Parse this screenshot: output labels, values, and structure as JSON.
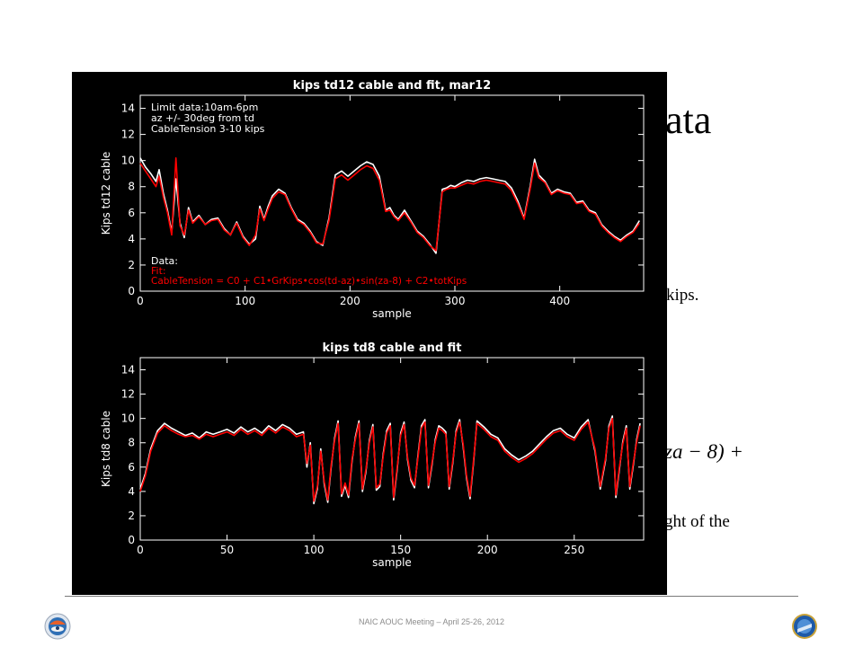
{
  "slide": {
    "title_fragment": "ata",
    "text_fragment_1": "kips.",
    "equation_fragment": "za − 8) +",
    "text_fragment_2": "ght  of the",
    "footer": "NAIC AOUC Meeting – April 25-26, 2012"
  },
  "colors": {
    "background": "#000000",
    "data_line": "#ffffff",
    "fit_line": "#ff0000"
  },
  "chart_data": [
    {
      "type": "line",
      "title": "kips td12 cable and fit, mar12",
      "xlabel": "sample",
      "ylabel": "Kips td12 cable",
      "xlim": [
        0,
        480
      ],
      "ylim": [
        0,
        15
      ],
      "xticks": [
        0,
        100,
        200,
        300,
        400
      ],
      "yticks": [
        0,
        2,
        4,
        6,
        8,
        10,
        12,
        14
      ],
      "annotations": [
        "Limit data:10am-6pm",
        "az +/- 30deg from td",
        "CableTension 3-10 kips"
      ],
      "legend": {
        "position": "bottom-left",
        "data_label": "Data:",
        "fit_label": "Fit:",
        "fit_formula": "CableTension = C0 + C1•GrKips•cos(td-az)•sin(za-8) + C2•totKips"
      },
      "series": [
        {
          "color": "#ffffff",
          "x": [
            0,
            5,
            10,
            15,
            18,
            22,
            26,
            30,
            34,
            38,
            42,
            46,
            50,
            56,
            62,
            68,
            74,
            80,
            86,
            92,
            98,
            104,
            110,
            114,
            118,
            122,
            126,
            132,
            138,
            144,
            150,
            156,
            162,
            168,
            174,
            180,
            186,
            192,
            198,
            204,
            210,
            216,
            222,
            228,
            234,
            238,
            242,
            246,
            252,
            258,
            264,
            270,
            276,
            282,
            288,
            292,
            296,
            300,
            306,
            312,
            318,
            324,
            330,
            336,
            342,
            348,
            354,
            360,
            366,
            372,
            376,
            380,
            386,
            392,
            398,
            404,
            410,
            416,
            422,
            428,
            434,
            440,
            446,
            452,
            458,
            464,
            470,
            476
          ],
          "y": [
            10.2,
            9.5,
            9.0,
            8.4,
            9.3,
            7.5,
            6.2,
            4.5,
            8.6,
            5.2,
            4.1,
            6.4,
            5.3,
            5.8,
            5.1,
            5.5,
            5.6,
            4.8,
            4.3,
            5.3,
            4.2,
            3.6,
            4.0,
            6.5,
            5.5,
            6.5,
            7.3,
            7.8,
            7.5,
            6.4,
            5.5,
            5.2,
            4.6,
            3.8,
            3.5,
            5.6,
            8.9,
            9.2,
            8.8,
            9.2,
            9.6,
            9.9,
            9.7,
            8.8,
            6.2,
            6.4,
            5.8,
            5.5,
            6.2,
            5.4,
            4.6,
            4.2,
            3.6,
            2.9,
            7.8,
            7.9,
            8.1,
            8.0,
            8.3,
            8.5,
            8.4,
            8.6,
            8.7,
            8.6,
            8.5,
            8.4,
            7.9,
            6.9,
            5.6,
            8.1,
            10.1,
            8.9,
            8.4,
            7.5,
            7.8,
            7.6,
            7.5,
            6.8,
            6.9,
            6.2,
            6.0,
            5.1,
            4.6,
            4.2,
            3.9,
            4.3,
            4.6,
            5.4
          ]
        },
        {
          "color": "#ff0000",
          "x": [
            0,
            5,
            10,
            15,
            18,
            22,
            26,
            30,
            34,
            38,
            42,
            46,
            50,
            56,
            62,
            68,
            74,
            80,
            86,
            92,
            98,
            104,
            110,
            114,
            118,
            122,
            126,
            132,
            138,
            144,
            150,
            156,
            162,
            168,
            174,
            180,
            186,
            192,
            198,
            204,
            210,
            216,
            222,
            228,
            234,
            238,
            242,
            246,
            252,
            258,
            264,
            270,
            276,
            282,
            288,
            292,
            296,
            300,
            306,
            312,
            318,
            324,
            330,
            336,
            342,
            348,
            354,
            360,
            366,
            372,
            376,
            380,
            386,
            392,
            398,
            404,
            410,
            416,
            422,
            428,
            434,
            440,
            446,
            452,
            458,
            464,
            470,
            476
          ],
          "y": [
            9.8,
            9.2,
            8.6,
            8.0,
            8.8,
            7.2,
            6.0,
            4.3,
            10.2,
            5.0,
            4.3,
            6.2,
            5.2,
            5.7,
            5.1,
            5.4,
            5.5,
            4.7,
            4.3,
            5.2,
            4.1,
            3.5,
            4.3,
            6.3,
            5.4,
            6.3,
            7.1,
            7.6,
            7.4,
            6.3,
            5.4,
            5.1,
            4.5,
            3.7,
            3.6,
            5.4,
            8.6,
            8.9,
            8.5,
            8.9,
            9.3,
            9.6,
            9.4,
            8.5,
            6.1,
            6.2,
            5.7,
            5.4,
            6.0,
            5.3,
            4.5,
            4.1,
            3.5,
            3.1,
            7.6,
            7.8,
            7.9,
            7.9,
            8.1,
            8.3,
            8.2,
            8.4,
            8.5,
            8.4,
            8.3,
            8.2,
            7.7,
            6.7,
            5.5,
            7.9,
            9.8,
            8.7,
            8.3,
            7.4,
            7.7,
            7.5,
            7.4,
            6.7,
            6.8,
            6.1,
            5.9,
            5.0,
            4.5,
            4.1,
            3.8,
            4.2,
            4.5,
            5.2
          ]
        }
      ]
    },
    {
      "type": "line",
      "title": "kips td8 cable and fit",
      "xlabel": "sample",
      "ylabel": "Kips td8 cable",
      "xlim": [
        0,
        290
      ],
      "ylim": [
        0,
        15
      ],
      "xticks": [
        0,
        50,
        100,
        150,
        200,
        250
      ],
      "yticks": [
        0,
        2,
        4,
        6,
        8,
        10,
        12,
        14
      ],
      "series": [
        {
          "color": "#ffffff",
          "x": [
            0,
            3,
            6,
            10,
            14,
            18,
            22,
            26,
            30,
            34,
            38,
            42,
            46,
            50,
            54,
            58,
            62,
            66,
            70,
            74,
            78,
            82,
            86,
            90,
            94,
            96,
            98,
            100,
            102,
            104,
            106,
            108,
            110,
            112,
            114,
            116,
            118,
            120,
            122,
            124,
            126,
            128,
            130,
            132,
            134,
            136,
            138,
            140,
            142,
            144,
            146,
            148,
            150,
            152,
            154,
            156,
            158,
            160,
            162,
            164,
            166,
            168,
            170,
            172,
            174,
            176,
            178,
            180,
            182,
            184,
            186,
            188,
            190,
            192,
            194,
            198,
            202,
            206,
            210,
            214,
            218,
            222,
            226,
            230,
            234,
            238,
            242,
            246,
            250,
            254,
            258,
            262,
            265,
            268,
            270,
            272,
            274,
            276,
            278,
            280,
            282,
            284,
            286,
            288
          ],
          "y": [
            4.2,
            5.5,
            7.5,
            9.0,
            9.6,
            9.2,
            8.9,
            8.6,
            8.8,
            8.4,
            8.9,
            8.7,
            8.9,
            9.1,
            8.8,
            9.3,
            8.9,
            9.2,
            8.8,
            9.4,
            9.0,
            9.5,
            9.2,
            8.7,
            8.9,
            6.0,
            8.0,
            3.0,
            4.2,
            7.5,
            4.6,
            3.1,
            6.0,
            8.4,
            9.8,
            3.6,
            4.5,
            3.5,
            6.5,
            8.5,
            9.8,
            4.0,
            5.6,
            8.2,
            9.5,
            4.1,
            4.4,
            7.1,
            9.0,
            9.6,
            3.3,
            5.8,
            8.8,
            9.7,
            6.6,
            4.9,
            4.3,
            7.0,
            9.4,
            9.9,
            4.3,
            6.1,
            8.3,
            9.4,
            9.2,
            8.9,
            4.2,
            6.3,
            9.0,
            9.9,
            7.7,
            5.1,
            3.4,
            6.4,
            9.8,
            9.3,
            8.7,
            8.4,
            7.5,
            7.0,
            6.6,
            6.9,
            7.3,
            7.9,
            8.5,
            9.0,
            9.2,
            8.7,
            8.4,
            9.3,
            9.9,
            7.3,
            4.2,
            6.5,
            9.4,
            10.2,
            3.5,
            5.8,
            8.1,
            9.4,
            4.2,
            6.1,
            8.3,
            9.6
          ]
        },
        {
          "color": "#ff0000",
          "x": [
            0,
            3,
            6,
            10,
            14,
            18,
            22,
            26,
            30,
            34,
            38,
            42,
            46,
            50,
            54,
            58,
            62,
            66,
            70,
            74,
            78,
            82,
            86,
            90,
            94,
            96,
            98,
            100,
            102,
            104,
            106,
            108,
            110,
            112,
            114,
            116,
            118,
            120,
            122,
            124,
            126,
            128,
            130,
            132,
            134,
            136,
            138,
            140,
            142,
            144,
            146,
            148,
            150,
            152,
            154,
            156,
            158,
            160,
            162,
            164,
            166,
            168,
            170,
            172,
            174,
            176,
            178,
            180,
            182,
            184,
            186,
            188,
            190,
            192,
            194,
            198,
            202,
            206,
            210,
            214,
            218,
            222,
            226,
            230,
            234,
            238,
            242,
            246,
            250,
            254,
            258,
            262,
            265,
            268,
            270,
            272,
            274,
            276,
            278,
            280,
            282,
            284,
            286,
            288
          ],
          "y": [
            4.0,
            5.3,
            7.3,
            8.8,
            9.4,
            9.0,
            8.7,
            8.5,
            8.6,
            8.3,
            8.7,
            8.5,
            8.7,
            8.9,
            8.6,
            9.1,
            8.7,
            9.0,
            8.6,
            9.2,
            8.8,
            9.3,
            9.0,
            8.5,
            8.7,
            6.3,
            7.8,
            3.2,
            4.4,
            7.3,
            4.8,
            3.3,
            6.2,
            8.2,
            9.6,
            3.8,
            4.7,
            3.7,
            6.7,
            8.3,
            9.6,
            4.2,
            5.8,
            8.0,
            9.3,
            4.3,
            4.6,
            6.9,
            8.8,
            9.4,
            3.5,
            6.0,
            8.6,
            9.5,
            6.8,
            5.1,
            4.5,
            6.8,
            9.2,
            9.7,
            4.5,
            6.3,
            8.1,
            9.2,
            9.0,
            8.7,
            4.4,
            6.5,
            8.8,
            9.7,
            7.9,
            5.3,
            3.6,
            6.6,
            9.6,
            9.1,
            8.5,
            8.2,
            7.3,
            6.8,
            6.4,
            6.7,
            7.1,
            7.7,
            8.3,
            8.8,
            9.0,
            8.5,
            8.2,
            9.1,
            9.7,
            7.5,
            4.4,
            6.7,
            9.2,
            10.0,
            3.7,
            6.0,
            7.9,
            9.2,
            4.4,
            6.3,
            8.1,
            9.4
          ]
        }
      ]
    }
  ]
}
